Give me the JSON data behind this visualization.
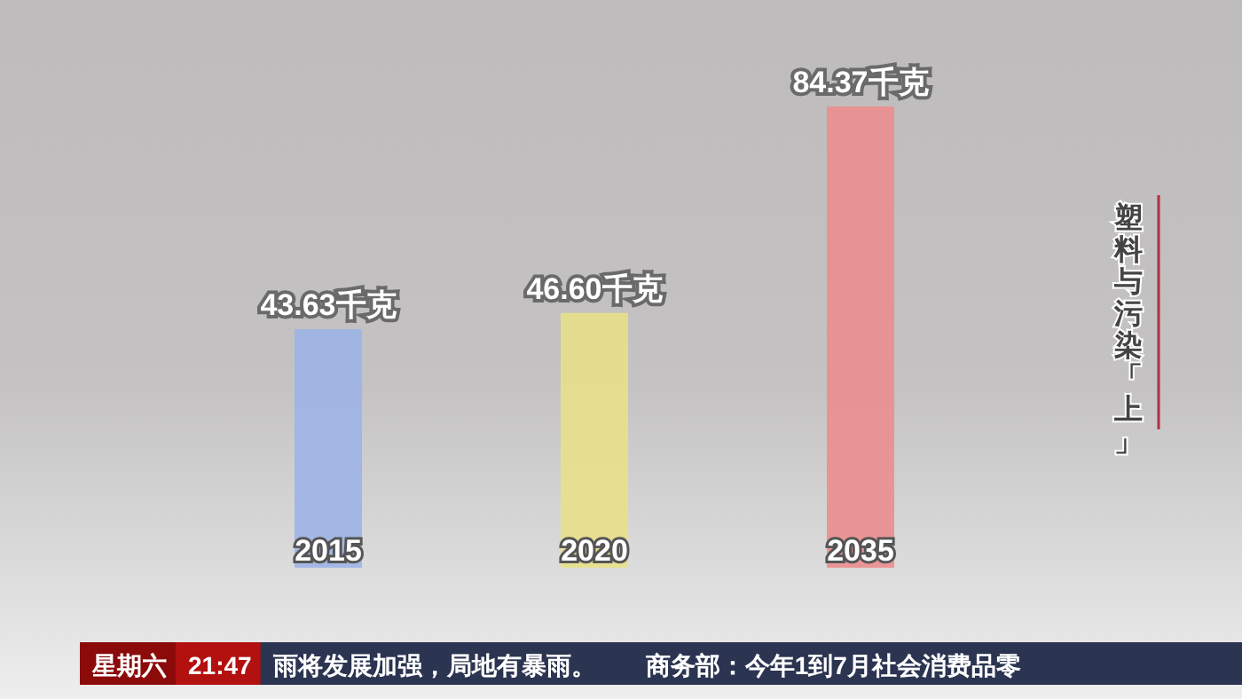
{
  "chart_data": {
    "type": "bar",
    "categories": [
      "2015",
      "2020",
      "2035"
    ],
    "values": [
      43.63,
      46.6,
      84.37
    ],
    "colors": [
      "#9db4e6",
      "#e8e08a",
      "#eb8e8e"
    ],
    "value_labels": [
      "43.63千克",
      "46.60千克",
      "84.37千克"
    ],
    "annotations": [
      "塑料与污染「上」",
      "星期六",
      "21:47",
      "雨将发展加强，局地有暴雨。",
      "商务部：今年1到7月社会消费品零"
    ]
  }
}
